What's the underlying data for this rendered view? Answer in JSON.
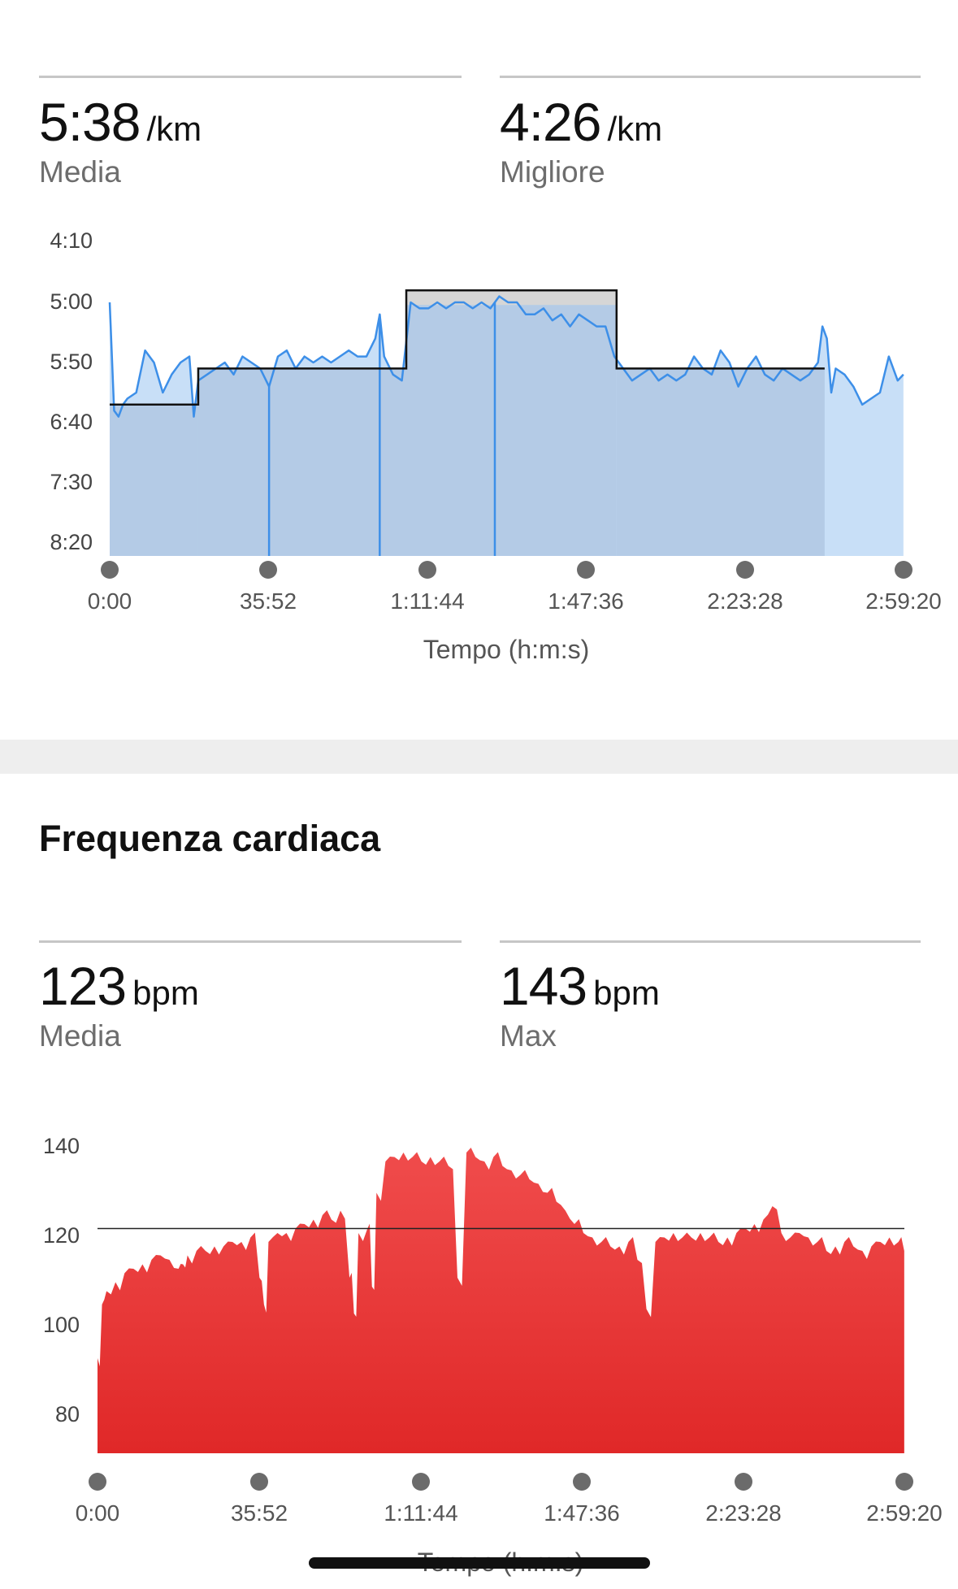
{
  "pace": {
    "avg": {
      "value": "5:38",
      "unit": "/km",
      "label": "Media"
    },
    "best": {
      "value": "4:26",
      "unit": "/km",
      "label": "Migliore"
    }
  },
  "heart": {
    "title": "Frequenza cardiaca",
    "avg": {
      "value": "123",
      "unit": "bpm",
      "label": "Media"
    },
    "max": {
      "value": "143",
      "unit": "bpm",
      "label": "Max"
    }
  },
  "colors": {
    "pace_line": "#3d8fe8",
    "pace_fill": "#c8dff7",
    "pace_lap_fill": "#b4cbe6",
    "hr_top": "#f04c4c",
    "hr_bottom": "#e02828"
  },
  "chart_data": [
    {
      "type": "area",
      "xlabel": "Tempo (h:m:s)",
      "ylabel": "",
      "x_ticks": [
        "0:00",
        "35:52",
        "1:11:44",
        "1:47:36",
        "2:23:28",
        "2:59:20"
      ],
      "y_ticks": [
        "4:10",
        "5:00",
        "5:50",
        "6:40",
        "7:30",
        "8:20"
      ],
      "y_inverted": true,
      "ylim_seconds_per_km": [
        250,
        500
      ],
      "x_minutes": [
        0,
        1,
        2,
        3,
        4,
        6,
        8,
        10,
        12,
        14,
        16,
        18,
        19,
        20,
        22,
        24,
        26,
        28,
        30,
        32,
        34,
        36,
        38,
        40,
        42,
        44,
        46,
        48,
        50,
        52,
        54,
        56,
        58,
        60,
        61,
        62,
        64,
        66,
        68,
        70,
        72,
        74,
        76,
        78,
        80,
        82,
        84,
        86,
        87,
        88,
        90,
        92,
        94,
        96,
        98,
        100,
        102,
        104,
        106,
        108,
        110,
        112,
        114,
        116,
        118,
        120,
        122,
        124,
        126,
        128,
        130,
        132,
        134,
        136,
        138,
        140,
        142,
        144,
        146,
        148,
        150,
        152,
        154,
        156,
        158,
        160,
        161,
        162,
        163,
        164,
        166,
        168,
        170,
        172,
        174,
        176,
        178,
        179.3
      ],
      "pace_seconds_per_km": [
        300,
        390,
        395,
        385,
        380,
        375,
        340,
        350,
        375,
        360,
        350,
        345,
        395,
        365,
        360,
        355,
        350,
        360,
        345,
        350,
        355,
        370,
        345,
        340,
        355,
        345,
        350,
        345,
        350,
        345,
        340,
        345,
        345,
        330,
        310,
        345,
        360,
        365,
        300,
        305,
        305,
        300,
        305,
        300,
        300,
        305,
        300,
        305,
        300,
        295,
        300,
        300,
        310,
        310,
        305,
        315,
        310,
        320,
        310,
        315,
        320,
        320,
        345,
        355,
        365,
        360,
        355,
        365,
        360,
        365,
        360,
        345,
        355,
        360,
        340,
        350,
        370,
        355,
        345,
        360,
        365,
        355,
        360,
        365,
        360,
        350,
        320,
        330,
        375,
        355,
        360,
        370,
        385,
        380,
        375,
        345,
        365,
        360
      ],
      "lap_pace_seconds_per_km": [
        {
          "start_minutes": 0,
          "end_minutes": 20,
          "pace": 385
        },
        {
          "start_minutes": 20,
          "end_minutes": 67,
          "pace": 355
        },
        {
          "start_minutes": 67,
          "end_minutes": 114.5,
          "pace": 290
        },
        {
          "start_minutes": 114.5,
          "end_minutes": 161.5,
          "pace": 355
        }
      ],
      "annotations": []
    },
    {
      "type": "area",
      "xlabel": "Tempo (h:m:s)",
      "ylabel": "",
      "x_ticks": [
        "0:00",
        "35:52",
        "1:11:44",
        "1:47:36",
        "2:23:28",
        "2:59:20"
      ],
      "y_ticks": [
        "140",
        "120",
        "100",
        "80"
      ],
      "ylim": [
        72,
        143
      ],
      "average_line": 123,
      "x_minutes": [
        0,
        1,
        2,
        4,
        6,
        8,
        10,
        12,
        14,
        16,
        18,
        19,
        20,
        22,
        24,
        26,
        28,
        30,
        32,
        34,
        36,
        37,
        38,
        40,
        42,
        44,
        46,
        48,
        50,
        52,
        54,
        56,
        57,
        58,
        60,
        61,
        62,
        64,
        66,
        68,
        70,
        72,
        74,
        76,
        78,
        80,
        82,
        84,
        86,
        88,
        90,
        92,
        94,
        96,
        98,
        100,
        102,
        104,
        106,
        108,
        110,
        112,
        114,
        116,
        118,
        120,
        122,
        124,
        126,
        128,
        130,
        132,
        134,
        136,
        138,
        140,
        142,
        144,
        146,
        148,
        150,
        152,
        154,
        156,
        158,
        160,
        162,
        164,
        166,
        168,
        170,
        172,
        174,
        176,
        178,
        179.3
      ],
      "bpm": [
        94,
        106,
        109,
        111,
        113,
        114,
        115,
        116,
        117,
        116,
        114,
        115,
        117,
        118,
        118,
        119,
        119,
        120,
        120,
        121,
        112,
        106,
        120,
        122,
        122,
        123,
        124,
        125,
        126,
        125,
        127,
        112,
        104,
        122,
        123,
        110,
        131,
        138,
        139,
        140,
        139,
        138,
        139,
        138,
        137,
        112,
        140,
        139,
        138,
        139,
        137,
        136,
        135,
        134,
        133,
        131,
        129,
        127,
        124,
        122,
        121,
        120,
        119,
        119,
        120,
        116,
        105,
        120,
        121,
        122,
        121,
        121,
        122,
        121,
        120,
        121,
        122,
        123,
        124,
        125,
        128,
        122,
        121,
        122,
        121,
        120,
        118,
        119,
        120,
        119,
        118,
        119,
        120,
        121,
        120,
        118
      ]
    }
  ]
}
